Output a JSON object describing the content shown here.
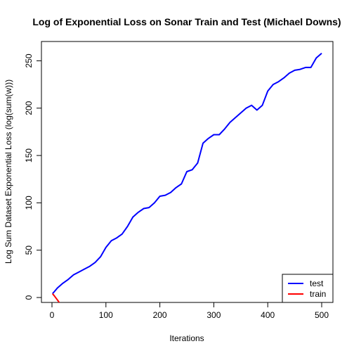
{
  "chart_data": {
    "type": "line",
    "title": "Log of Exponential Loss on Sonar Train and Test (Michael Downs)",
    "xlabel": "Iterations",
    "ylabel": "Log Sum Dataset Exponential Loss (log(sum(w)))",
    "xlim": [
      0,
      500
    ],
    "ylim": [
      0,
      260
    ],
    "xticks": [
      0,
      100,
      200,
      300,
      400,
      500
    ],
    "yticks": [
      0,
      50,
      100,
      150,
      200,
      250
    ],
    "grid": false,
    "legend_position": "bottom-right",
    "series": [
      {
        "name": "test",
        "color": "#0000ff",
        "x": [
          1,
          10,
          20,
          30,
          40,
          50,
          60,
          70,
          80,
          90,
          100,
          110,
          120,
          130,
          140,
          150,
          160,
          170,
          180,
          190,
          200,
          210,
          220,
          230,
          240,
          250,
          260,
          270,
          280,
          290,
          300,
          310,
          320,
          330,
          340,
          350,
          360,
          370,
          380,
          390,
          400,
          410,
          420,
          430,
          440,
          450,
          460,
          470,
          480,
          490,
          500
        ],
        "y": [
          4,
          10,
          15,
          19,
          24,
          27,
          30,
          33,
          37,
          43,
          53,
          60,
          63,
          67,
          75,
          85,
          90,
          94,
          95,
          100,
          107,
          108,
          111,
          116,
          120,
          133,
          135,
          142,
          163,
          168,
          172,
          172,
          178,
          185,
          190,
          195,
          200,
          203,
          198,
          203,
          218,
          225,
          228,
          232,
          237,
          240,
          241,
          243,
          243,
          253,
          258
        ]
      },
      {
        "name": "train",
        "color": "#ff0000",
        "x": [
          1,
          4,
          8,
          12,
          14
        ],
        "y": [
          4,
          2,
          -1,
          -4,
          -6
        ]
      }
    ]
  }
}
